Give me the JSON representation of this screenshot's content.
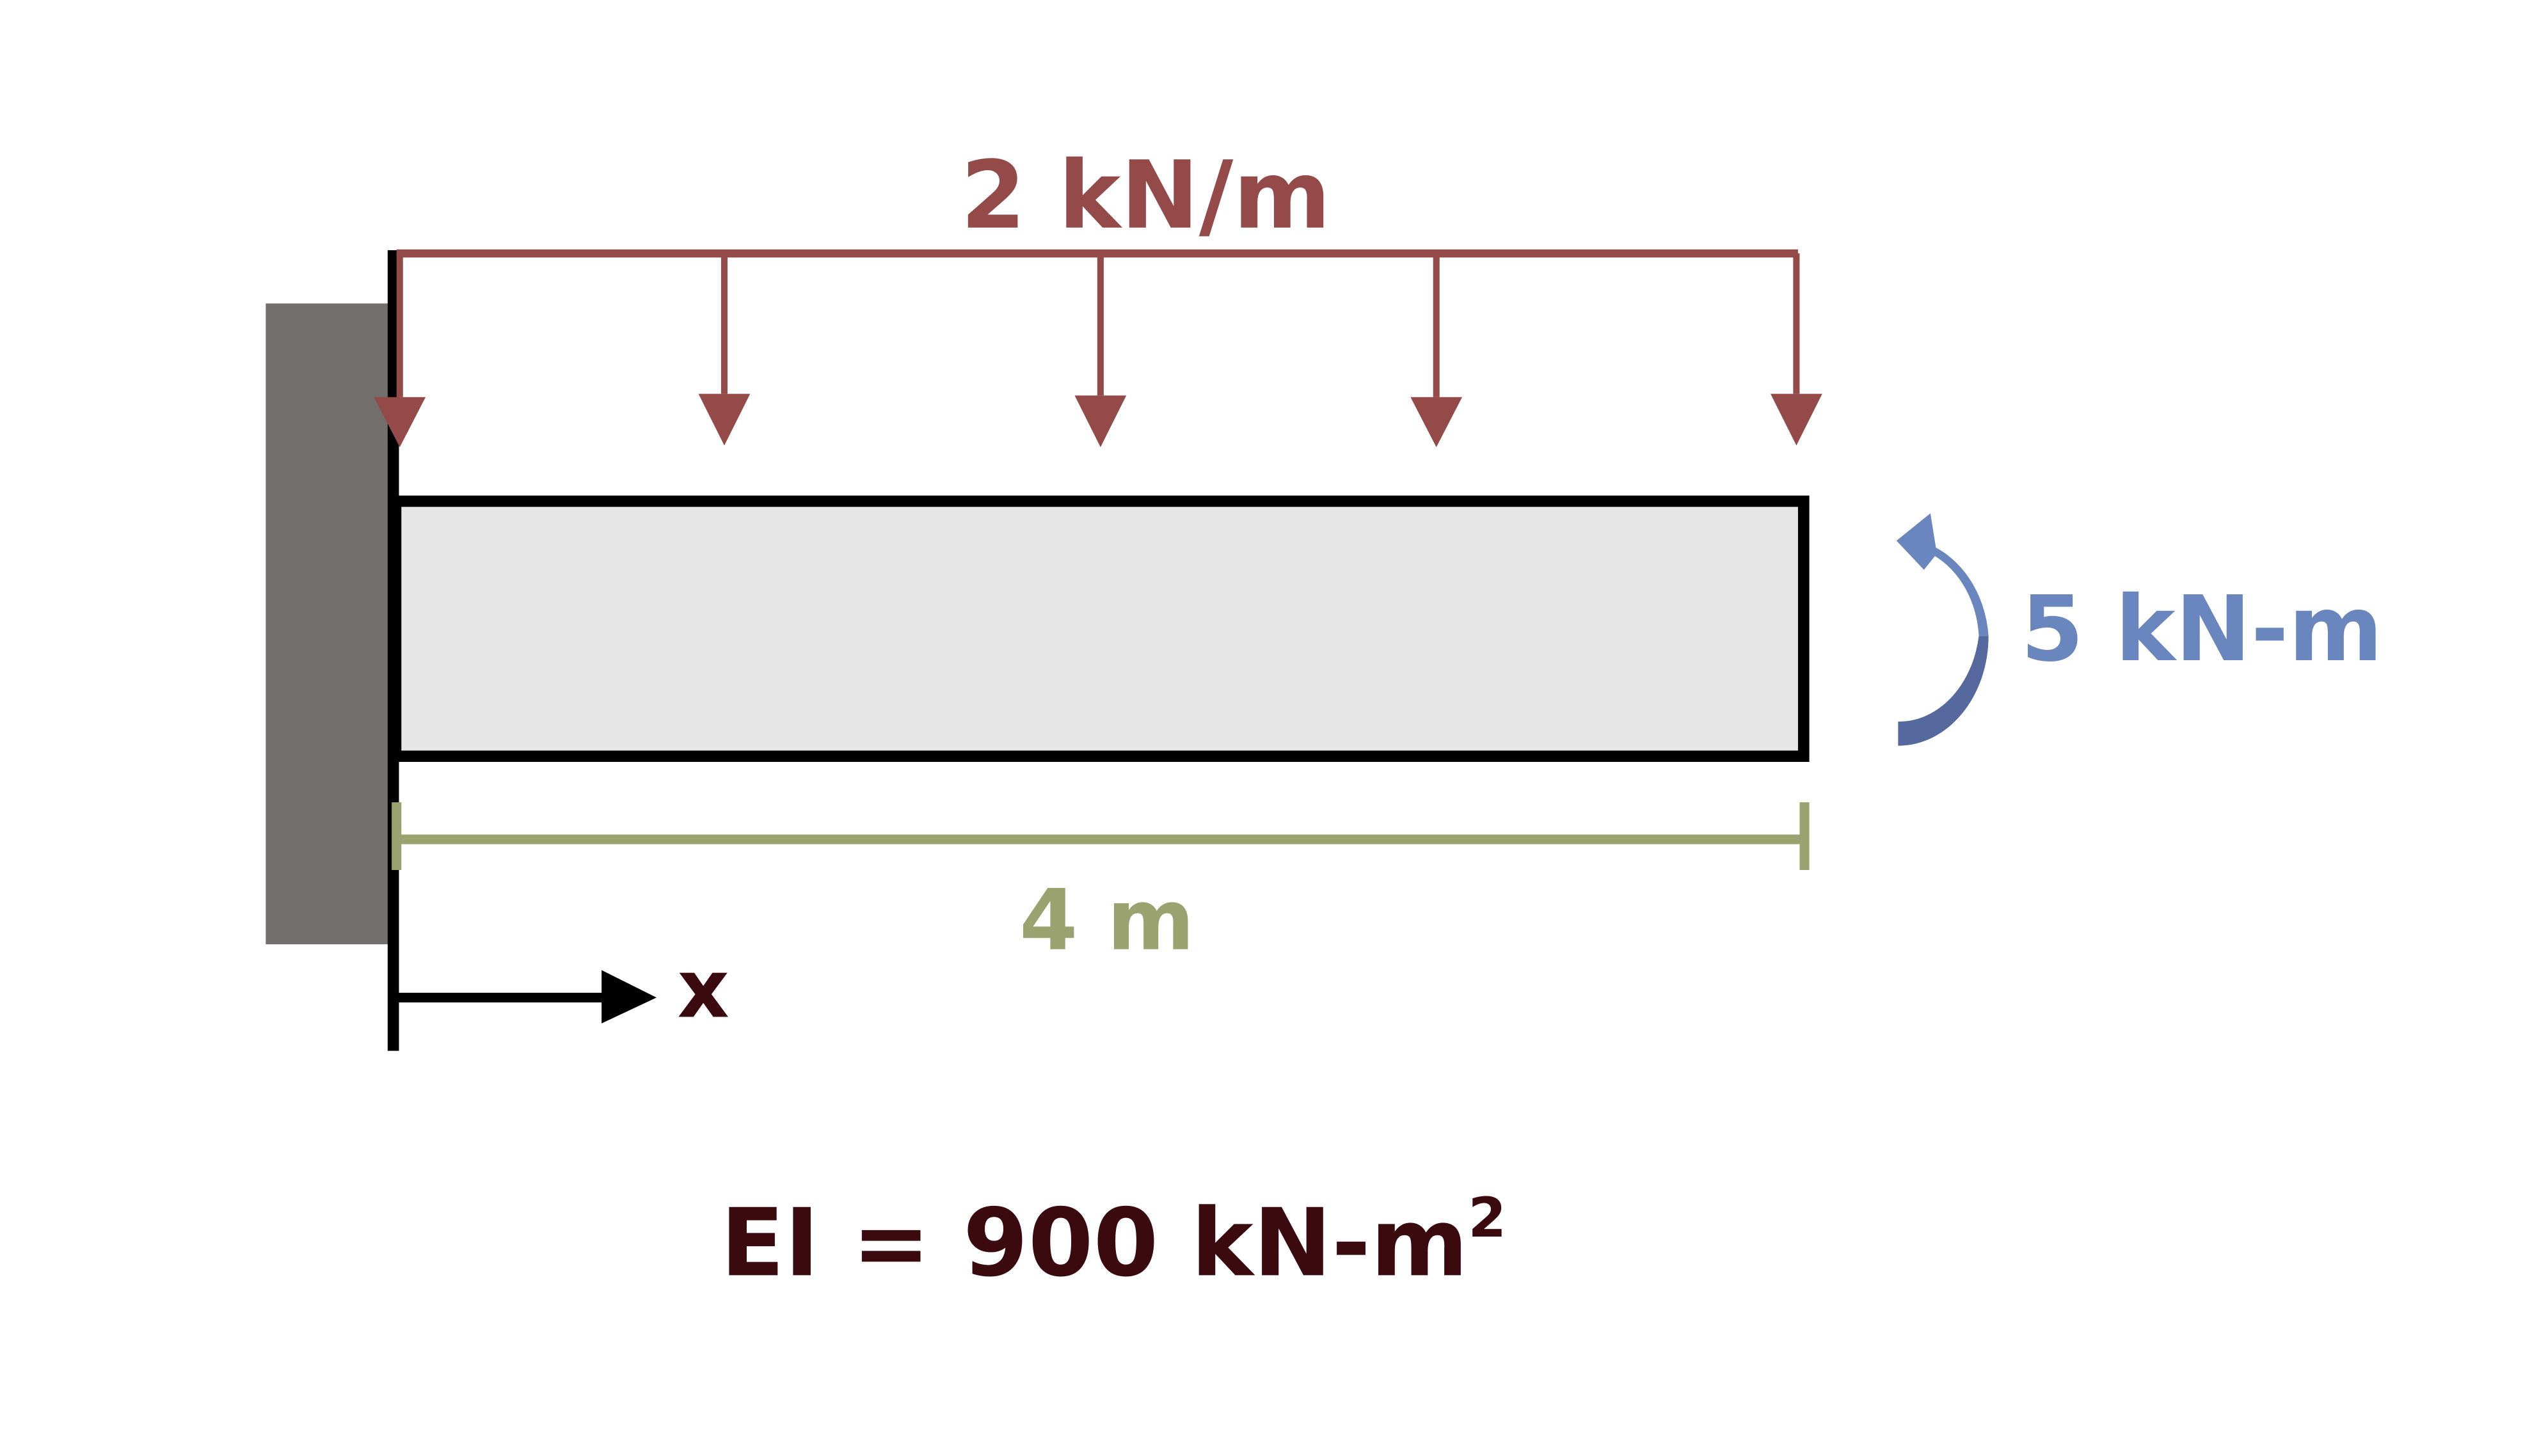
{
  "diagram": {
    "load_label": "2 kN/m",
    "moment_label": "5 kN-m",
    "length_label": "4 m",
    "axis_label": "x",
    "stiffness_label": "EI = 900 kN-m",
    "stiffness_exponent": "2"
  },
  "colors": {
    "load": "#944a48",
    "moment": "#6a86be",
    "moment_dark": "#56699f",
    "dimension": "#9aa36f",
    "wall": "#736f6c",
    "beam_fill": "#e6e6e6",
    "outline": "#000000",
    "stiffness_text": "#3a0a0e",
    "axis_label_text": "#3a0a0e"
  }
}
